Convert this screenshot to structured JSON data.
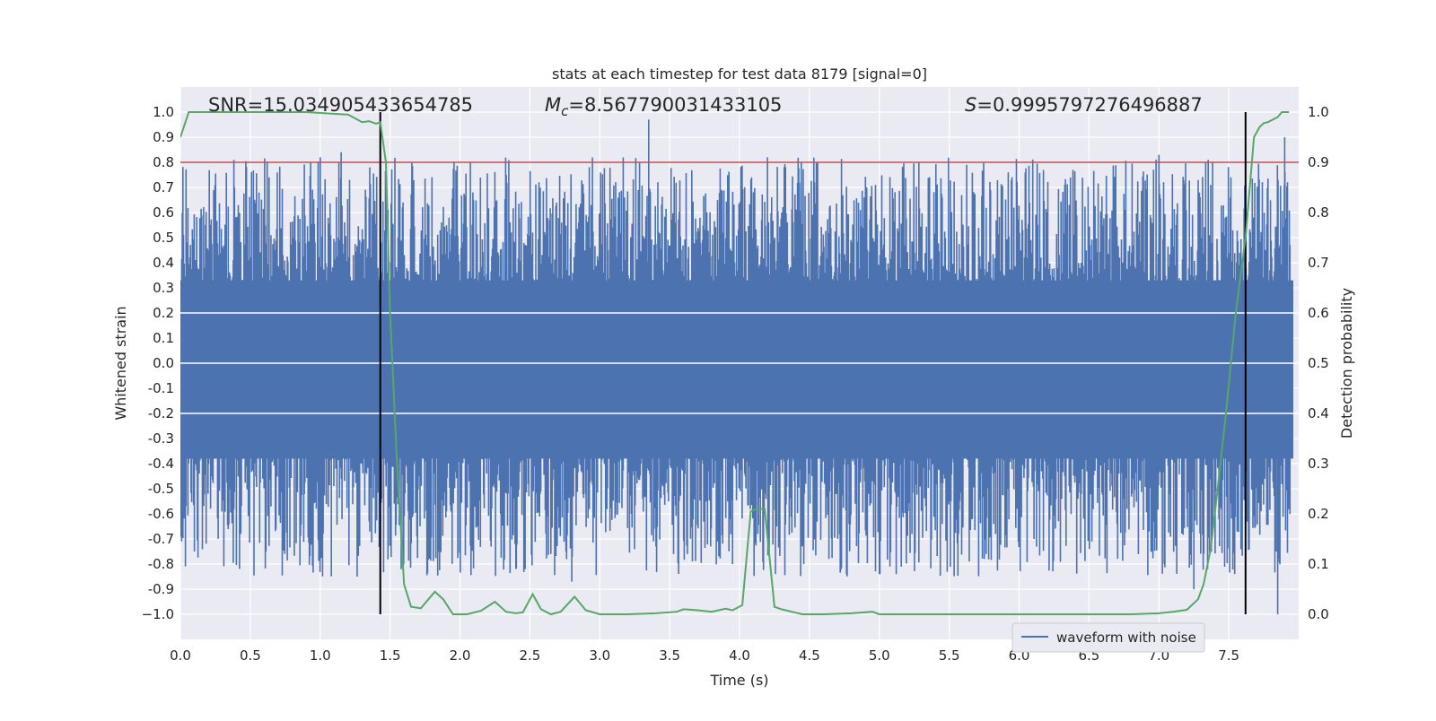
{
  "chart_data": {
    "type": "line",
    "title": "stats at each timestep for test data 8179 [signal=0]",
    "xlabel": "Time (s)",
    "ylabel": "Whitened strain",
    "ylabel_right": "Detection probability",
    "xlim": [
      0.0,
      8.0
    ],
    "ylim": [
      -1.1,
      1.1
    ],
    "ylim_right": [
      -0.05,
      1.05
    ],
    "x_ticks": [
      "0.0",
      "0.5",
      "1.0",
      "1.5",
      "2.0",
      "2.5",
      "3.0",
      "3.5",
      "4.0",
      "4.5",
      "5.0",
      "5.5",
      "6.0",
      "6.5",
      "7.0",
      "7.5"
    ],
    "y_ticks": [
      "1.0",
      "0.9",
      "0.8",
      "0.7",
      "0.6",
      "0.5",
      "0.4",
      "0.3",
      "0.2",
      "0.1",
      "0.0",
      "-0.1",
      "-0.2",
      "-0.3",
      "-0.4",
      "-0.5",
      "-0.6",
      "-0.7",
      "-0.8",
      "-0.9",
      "−1.0"
    ],
    "y_right_ticks": [
      "1.0",
      "0.9",
      "0.8",
      "0.7",
      "0.6",
      "0.5",
      "0.4",
      "0.3",
      "0.2",
      "0.1",
      "0.0"
    ],
    "annotations": {
      "snr": "SNR=15.034905433654785",
      "mc_symbol": "M",
      "mc_sub": "c",
      "mc_value": "=8.567790031433105",
      "s_symbol": "S",
      "s_value": "=0.9995797276496887"
    },
    "threshold_line": {
      "y_right": 0.9,
      "color": "#c44e52"
    },
    "vertical_markers": [
      1.43,
      7.62
    ],
    "series": [
      {
        "name": "waveform with noise",
        "color": "#4c72b0",
        "envelope": "dense whitened noise, mostly within ±0.5 with spikes to about ±0.95",
        "notable_spikes": [
          {
            "x": 1.0,
            "y": 0.82
          },
          {
            "x": 1.15,
            "y": 0.84
          },
          {
            "x": 3.35,
            "y": 0.97
          },
          {
            "x": 4.2,
            "y": 0.82
          },
          {
            "x": 7.0,
            "y": 0.83
          },
          {
            "x": 7.9,
            "y": 0.9
          },
          {
            "x": 0.1,
            "y": -0.75
          },
          {
            "x": 2.4,
            "y": -0.82
          },
          {
            "x": 2.8,
            "y": -0.87
          },
          {
            "x": 3.95,
            "y": -0.8
          },
          {
            "x": 5.0,
            "y": -0.84
          },
          {
            "x": 7.25,
            "y": -0.9
          },
          {
            "x": 7.85,
            "y": -1.0
          }
        ]
      },
      {
        "name": "detection probability",
        "color": "#55a868",
        "axis": "right",
        "x": [
          0.0,
          0.06,
          0.3,
          0.6,
          0.9,
          1.2,
          1.3,
          1.35,
          1.4,
          1.43,
          1.47,
          1.5,
          1.55,
          1.6,
          1.65,
          1.72,
          1.82,
          1.88,
          1.95,
          2.05,
          2.15,
          2.25,
          2.33,
          2.4,
          2.45,
          2.52,
          2.58,
          2.65,
          2.72,
          2.82,
          2.9,
          3.0,
          3.2,
          3.4,
          3.55,
          3.6,
          3.7,
          3.8,
          3.9,
          3.95,
          4.02,
          4.08,
          4.12,
          4.18,
          4.25,
          4.3,
          4.45,
          4.6,
          4.8,
          4.95,
          5.0,
          5.2,
          5.5,
          6.0,
          6.5,
          6.8,
          7.0,
          7.1,
          7.2,
          7.28,
          7.32,
          7.37,
          7.42,
          7.48,
          7.55,
          7.62,
          7.68,
          7.72,
          7.75,
          7.78,
          7.85,
          7.88,
          7.93
        ],
        "y": [
          0.95,
          1.0,
          1.0,
          1.0,
          1.0,
          0.995,
          0.98,
          0.982,
          0.977,
          0.98,
          0.9,
          0.6,
          0.3,
          0.06,
          0.015,
          0.012,
          0.045,
          0.03,
          0.0,
          0.0,
          0.007,
          0.025,
          0.005,
          0.002,
          0.004,
          0.04,
          0.01,
          0.0,
          0.005,
          0.035,
          0.008,
          0.0,
          0.0,
          0.002,
          0.005,
          0.01,
          0.008,
          0.005,
          0.011,
          0.008,
          0.018,
          0.205,
          0.21,
          0.21,
          0.015,
          0.01,
          0.0,
          0.0,
          0.002,
          0.005,
          0.0,
          0.0,
          0.0,
          0.0,
          0.0,
          0.0,
          0.002,
          0.005,
          0.009,
          0.03,
          0.06,
          0.13,
          0.25,
          0.4,
          0.6,
          0.75,
          0.95,
          0.97,
          0.978,
          0.98,
          0.99,
          1.0,
          1.0
        ]
      }
    ],
    "legend": {
      "position": "lower-right",
      "label": "waveform with noise"
    }
  }
}
